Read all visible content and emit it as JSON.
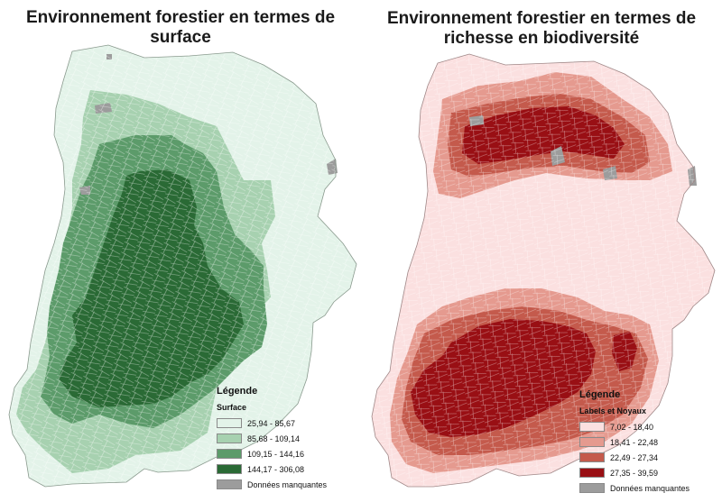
{
  "maps": [
    {
      "title_line1": "Environnement forestier en termes de surface",
      "title_line2": "",
      "legend": {
        "title": "Légende",
        "subtitle": "Surface",
        "classes": [
          {
            "label": "25,94 - 85,67",
            "color": "#e3f3e9"
          },
          {
            "label": "85,68 - 109,14",
            "color": "#a7d1b0"
          },
          {
            "label": "109,15 - 144,16",
            "color": "#5c9b6a"
          },
          {
            "label": "144,17 - 306,08",
            "color": "#2a6a35"
          },
          {
            "label": "Données manquantes",
            "color": "#9c9c9c"
          }
        ]
      }
    },
    {
      "title_line1": "Environnement forestier en termes de",
      "title_line2": "richesse en biodiversité",
      "legend": {
        "title": "Légende",
        "subtitle": "Labels et Noyaux",
        "classes": [
          {
            "label": "7,02 - 18,40",
            "color": "#fbe0e0"
          },
          {
            "label": "18,41 - 22,48",
            "color": "#e59a8f"
          },
          {
            "label": "22,49 - 27,34",
            "color": "#c45a4c"
          },
          {
            "label": "27,35 - 39,59",
            "color": "#990f14"
          },
          {
            "label": "Données manquantes",
            "color": "#9c9c9c"
          }
        ]
      }
    }
  ]
}
